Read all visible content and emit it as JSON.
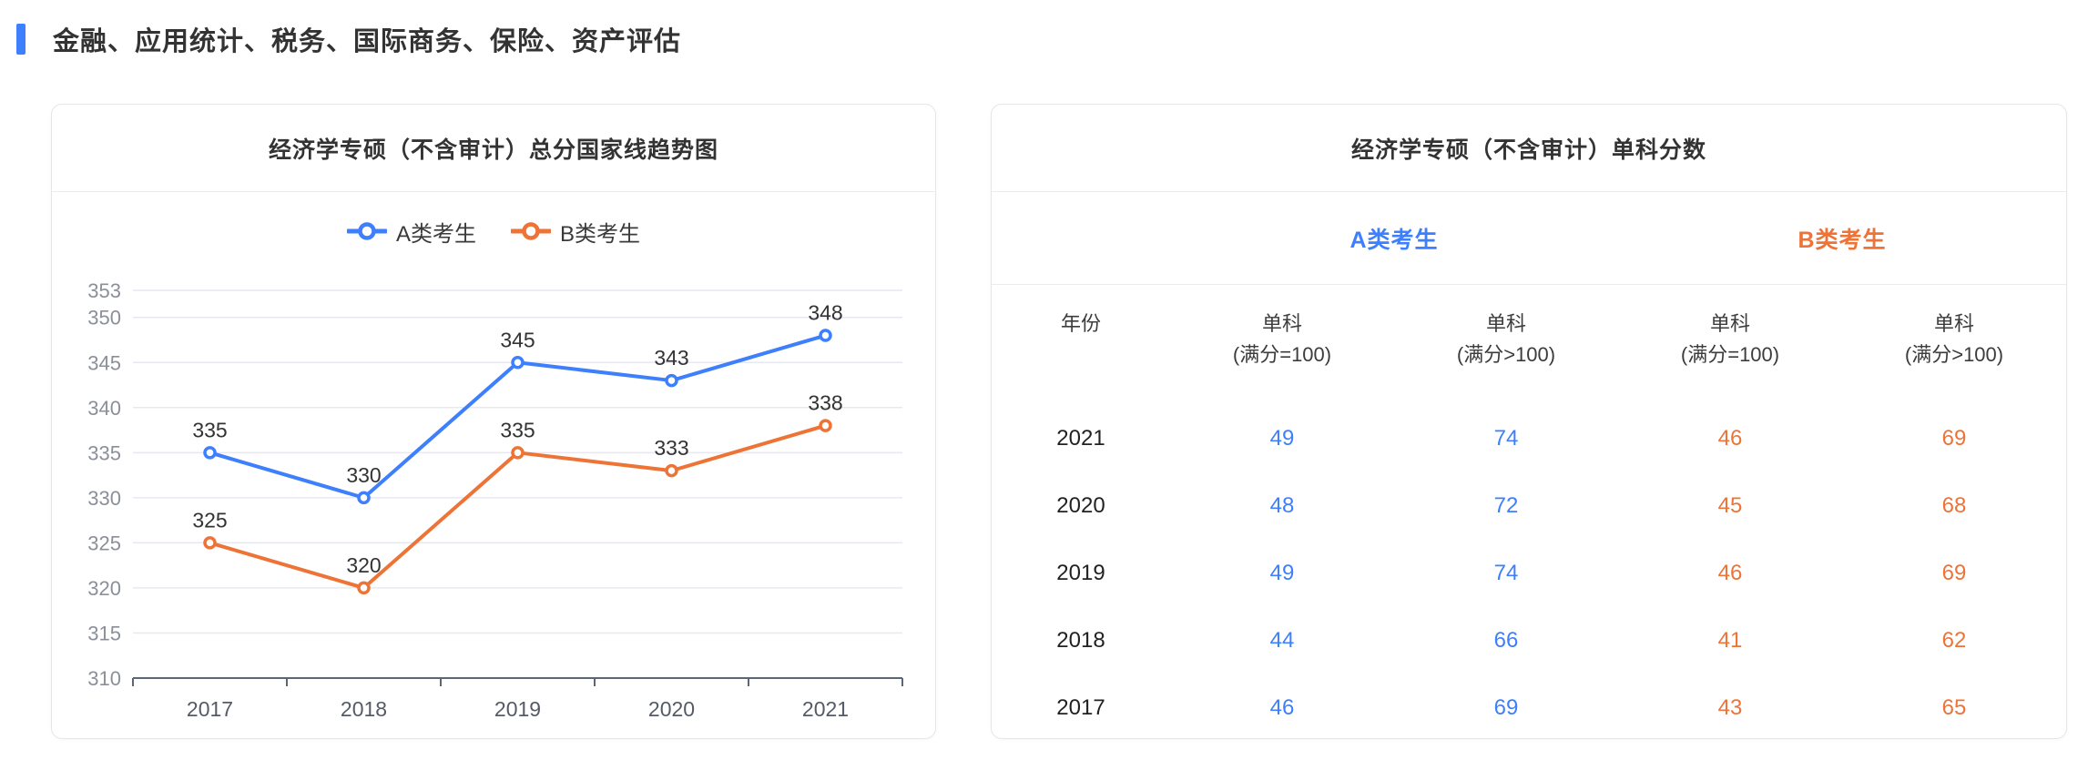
{
  "page": {
    "title": "金融、应用统计、税务、国际商务、保险、资产评估",
    "accent_color": "#3D7FFC"
  },
  "chart_card": {
    "title": "经济学专硕（不含审计）总分国家线趋势图"
  },
  "chart_data": {
    "type": "line",
    "title": "经济学专硕（不含审计）总分国家线趋势图",
    "categories": [
      "2017",
      "2018",
      "2019",
      "2020",
      "2021"
    ],
    "series": [
      {
        "name": "A类考生",
        "color": "#3D7FFC",
        "values": [
          335,
          330,
          345,
          343,
          348
        ]
      },
      {
        "name": "B类考生",
        "color": "#ED7336",
        "values": [
          325,
          320,
          335,
          333,
          338
        ]
      }
    ],
    "ylim": [
      310,
      353
    ],
    "yticks": [
      310,
      315,
      320,
      325,
      330,
      335,
      340,
      345,
      350,
      353
    ],
    "grid": true,
    "legend_position": "top",
    "data_labels": true,
    "xlabel": "",
    "ylabel": ""
  },
  "table_card": {
    "title": "经济学专硕（不含审计）单科分数",
    "groups": [
      {
        "label": "A类考生",
        "color": "#3D7FFC"
      },
      {
        "label": "B类考生",
        "color": "#ED7336"
      }
    ],
    "year_header": "年份",
    "columns": [
      {
        "label": "单科",
        "sub": "(满分=100)",
        "group": 0
      },
      {
        "label": "单科",
        "sub": "(满分>100)",
        "group": 0
      },
      {
        "label": "单科",
        "sub": "(满分=100)",
        "group": 1
      },
      {
        "label": "单科",
        "sub": "(满分>100)",
        "group": 1
      }
    ],
    "rows": [
      {
        "year": "2021",
        "values": [
          49,
          74,
          46,
          69
        ]
      },
      {
        "year": "2020",
        "values": [
          48,
          72,
          45,
          68
        ]
      },
      {
        "year": "2019",
        "values": [
          49,
          74,
          46,
          69
        ]
      },
      {
        "year": "2018",
        "values": [
          44,
          66,
          41,
          62
        ]
      },
      {
        "year": "2017",
        "values": [
          46,
          69,
          43,
          65
        ]
      }
    ]
  }
}
